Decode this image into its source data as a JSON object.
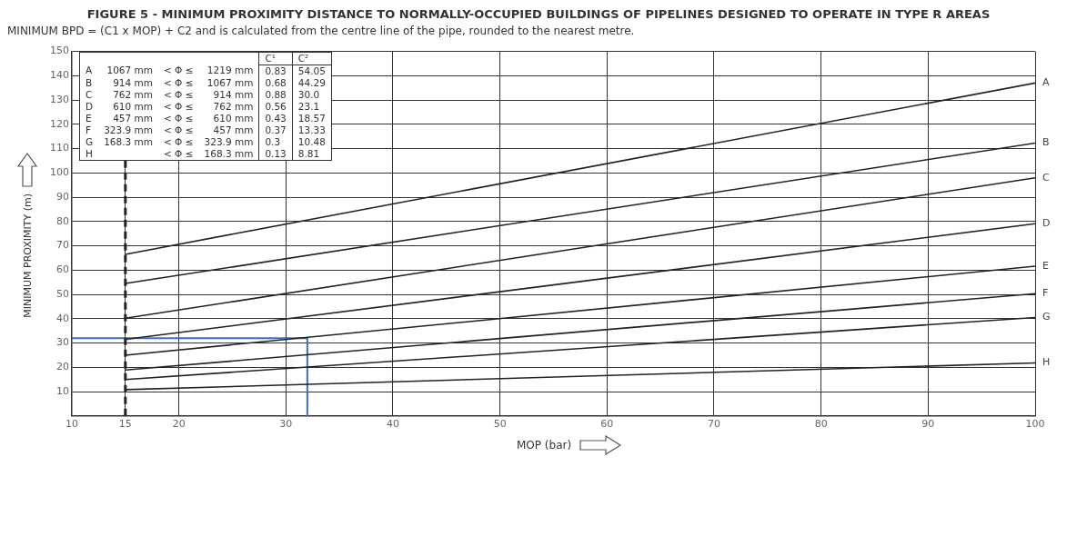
{
  "chart_data": {
    "type": "line",
    "title": "FIGURE 5 - MINIMUM PROXIMITY DISTANCE TO NORMALLY-OCCUPIED BUILDINGS OF PIPELINES DESIGNED TO OPERATE IN TYPE R AREAS",
    "xlabel": "MOP (bar)",
    "ylabel": "MINIMUM PROXIMITY (m)",
    "annotations": [
      "MINIMUM BPD = (C1 x MOP) + C2 and is calculated from the centre line of the pipe, rounded to the nearest metre.",
      "\t\t\t\tC¹\tC²",
      "A\t1067 mm\t< Φ ≤\t1219 mm\t0.83\t54.05",
      "B\t914 mm\t< Φ ≤\t1067 mm\t0.68\t44.29",
      "C\t762 mm\t< Φ ≤\t914 mm\t0.88\t30.0",
      "D\t610 mm\t< Φ ≤\t762 mm\t0.56\t23.1",
      "E\t457 mm\t< Φ ≤\t610 mm\t0.43\t18.57",
      "F\t323.9 mm\t< Φ ≤\t457 mm\t0.37\t13.33",
      "G\t168.3 mm\t< Φ ≤\t323.9 mm\t0.3\t10.48",
      "H\t\t< Φ ≤\t168.3 mm\t0.13\t8.81"
    ],
    "xlim": [
      10,
      100
    ],
    "xticks": [
      10,
      15,
      20,
      30,
      40,
      50,
      60,
      70,
      80,
      90,
      100
    ],
    "ylim": [
      0,
      150
    ],
    "yticks": [
      10,
      20,
      30,
      40,
      50,
      60,
      70,
      80,
      90,
      100,
      110,
      120,
      130,
      140,
      150
    ],
    "grid": true,
    "legend": false,
    "marker": "none",
    "ref_lines": [
      {
        "axis": "x",
        "value": 15,
        "color": "#222222",
        "line_style": "dashed"
      }
    ],
    "series": [
      {
        "name": "A",
        "color": "#222222",
        "x": [
          15,
          100
        ],
        "values": [
          66.5,
          137
        ]
      },
      {
        "name": "B",
        "color": "#222222",
        "x": [
          15,
          100
        ],
        "values": [
          54.5,
          112.3
        ]
      },
      {
        "name": "C",
        "color": "#222222",
        "x": [
          15,
          100
        ],
        "values": [
          40.2,
          98
        ]
      },
      {
        "name": "D",
        "color": "#222222",
        "x": [
          15,
          100
        ],
        "values": [
          31.5,
          79.1
        ]
      },
      {
        "name": "E",
        "color": "#222222",
        "x": [
          15,
          100
        ],
        "values": [
          25,
          61.6
        ]
      },
      {
        "name": "F",
        "color": "#222222",
        "x": [
          15,
          100
        ],
        "values": [
          18.9,
          50.3
        ]
      },
      {
        "name": "G",
        "color": "#222222",
        "x": [
          15,
          100
        ],
        "values": [
          15,
          40.5
        ]
      },
      {
        "name": "H",
        "color": "#222222",
        "x": [
          15,
          100
        ],
        "values": [
          10.8,
          21.8
        ]
      },
      {
        "color": "#3a70c0",
        "x": [
          10,
          32,
          32
        ],
        "values": [
          32,
          32,
          0
        ]
      }
    ]
  }
}
